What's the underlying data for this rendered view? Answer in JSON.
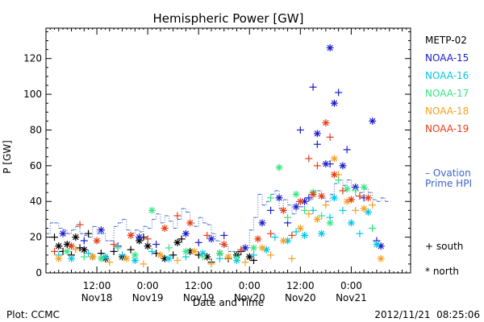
{
  "chart_data": {
    "type": "scatter",
    "title": "Hemispheric Power [GW]",
    "xlabel": "Date and Time",
    "ylabel": "P [GW]",
    "xlim": [
      0,
      86
    ],
    "ylim": [
      0,
      137
    ],
    "yticks": [
      0,
      20,
      40,
      60,
      80,
      100,
      120
    ],
    "xticks": [
      {
        "x": 12,
        "time": "12:00",
        "date": "Nov18"
      },
      {
        "x": 24,
        "time": "0:00",
        "date": "Nov19"
      },
      {
        "x": 36,
        "time": "12:00",
        "date": "Nov19"
      },
      {
        "x": 48,
        "time": "0:00",
        "date": "Nov20"
      },
      {
        "x": 60,
        "time": "12:00",
        "date": "Nov20"
      },
      {
        "x": 72,
        "time": "0:00",
        "date": "Nov21"
      }
    ],
    "grid": false,
    "legend_position": "right",
    "marker_legend": [
      {
        "symbol": "+",
        "label": "south"
      },
      {
        "symbol": "*",
        "label": "north"
      }
    ],
    "series": [
      {
        "name": "METP-02",
        "color": "#000000",
        "points": [
          [
            2,
            20,
            "+"
          ],
          [
            3,
            15,
            "*"
          ],
          [
            4,
            12,
            "+"
          ],
          [
            5,
            16,
            "*"
          ],
          [
            6,
            10,
            "+"
          ],
          [
            7,
            20,
            "*"
          ],
          [
            8,
            14,
            "+"
          ],
          [
            9,
            13,
            "*"
          ],
          [
            10,
            22,
            "+"
          ],
          [
            11,
            9,
            "*"
          ],
          [
            13,
            11,
            "+"
          ],
          [
            14,
            8,
            "*"
          ],
          [
            16,
            12,
            "+"
          ],
          [
            18,
            9,
            "*"
          ],
          [
            20,
            13,
            "+"
          ],
          [
            22,
            18,
            "*"
          ],
          [
            23,
            20,
            "+"
          ],
          [
            24,
            15,
            "*"
          ],
          [
            26,
            11,
            "+"
          ],
          [
            28,
            8,
            "*"
          ],
          [
            30,
            10,
            "+"
          ],
          [
            31,
            17,
            "*"
          ],
          [
            32,
            19,
            "+"
          ],
          [
            34,
            12,
            "*"
          ],
          [
            36,
            10,
            "+"
          ],
          [
            38,
            9,
            "*"
          ],
          [
            39,
            6,
            "+"
          ],
          [
            41,
            11,
            "*"
          ],
          [
            43,
            8,
            "+"
          ],
          [
            45,
            10,
            "*"
          ],
          [
            46,
            12,
            "+"
          ],
          [
            48,
            9,
            "*"
          ],
          [
            49,
            7,
            "+"
          ]
        ]
      },
      {
        "name": "NOAA-15",
        "color": "#1a1acc",
        "points": [
          [
            4,
            22,
            "*"
          ],
          [
            9,
            18,
            "+"
          ],
          [
            13,
            24,
            "*"
          ],
          [
            17,
            15,
            "+"
          ],
          [
            22,
            20,
            "*"
          ],
          [
            26,
            16,
            "+"
          ],
          [
            33,
            22,
            "*"
          ],
          [
            36,
            17,
            "+"
          ],
          [
            39,
            19,
            "*"
          ],
          [
            42,
            21,
            "+"
          ],
          [
            47,
            14,
            "*"
          ],
          [
            51,
            28,
            "*"
          ],
          [
            53,
            35,
            "+"
          ],
          [
            55,
            42,
            "*"
          ],
          [
            57,
            28,
            "+"
          ],
          [
            59,
            37,
            "*"
          ],
          [
            60,
            80,
            "+"
          ],
          [
            61,
            40,
            "*"
          ],
          [
            62,
            42,
            "+"
          ],
          [
            63,
            104,
            "+"
          ],
          [
            64,
            78,
            "*"
          ],
          [
            64,
            72,
            "+"
          ],
          [
            66,
            61,
            "*"
          ],
          [
            67,
            61,
            "+"
          ],
          [
            67,
            126,
            "*"
          ],
          [
            68,
            95,
            "*"
          ],
          [
            69,
            101,
            "+"
          ],
          [
            70,
            60,
            "*"
          ],
          [
            71,
            69,
            "+"
          ],
          [
            73,
            48,
            "*"
          ],
          [
            75,
            42,
            "+"
          ],
          [
            77,
            85,
            "*"
          ],
          [
            78,
            18,
            "+"
          ],
          [
            79,
            15,
            "*"
          ]
        ]
      },
      {
        "name": "NOAA-16",
        "color": "#00c8e6",
        "points": [
          [
            3,
            10,
            "+"
          ],
          [
            6,
            8,
            "*"
          ],
          [
            10,
            11,
            "+"
          ],
          [
            14,
            9,
            "*"
          ],
          [
            18,
            10,
            "+"
          ],
          [
            21,
            7,
            "*"
          ],
          [
            25,
            12,
            "+"
          ],
          [
            29,
            8,
            "*"
          ],
          [
            33,
            9,
            "+"
          ],
          [
            37,
            11,
            "*"
          ],
          [
            41,
            8,
            "+"
          ],
          [
            45,
            7,
            "*"
          ],
          [
            49,
            10,
            "+"
          ],
          [
            52,
            13,
            "*"
          ],
          [
            54,
            20,
            "+"
          ],
          [
            57,
            18,
            "*"
          ],
          [
            59,
            23,
            "+"
          ],
          [
            61,
            21,
            "*"
          ],
          [
            63,
            35,
            "+"
          ],
          [
            65,
            22,
            "*"
          ],
          [
            67,
            31,
            "+"
          ],
          [
            68,
            42,
            "*"
          ],
          [
            70,
            35,
            "+"
          ],
          [
            72,
            28,
            "*"
          ],
          [
            74,
            22,
            "+"
          ],
          [
            76,
            34,
            "*"
          ],
          [
            77,
            25,
            "+"
          ],
          [
            78,
            16,
            "*"
          ]
        ]
      },
      {
        "name": "NOAA-17",
        "color": "#33e680",
        "points": [
          [
            5,
            12,
            "*"
          ],
          [
            9,
            9,
            "+"
          ],
          [
            13,
            8,
            "*"
          ],
          [
            17,
            14,
            "+"
          ],
          [
            21,
            10,
            "*"
          ],
          [
            25,
            35,
            "*"
          ],
          [
            29,
            14,
            "+"
          ],
          [
            33,
            12,
            "*"
          ],
          [
            37,
            9,
            "+"
          ],
          [
            41,
            11,
            "*"
          ],
          [
            45,
            9,
            "+"
          ],
          [
            49,
            14,
            "*"
          ],
          [
            53,
            42,
            "+"
          ],
          [
            55,
            59,
            "*"
          ],
          [
            57,
            31,
            "+"
          ],
          [
            59,
            44,
            "*"
          ],
          [
            61,
            35,
            "+"
          ],
          [
            63,
            45,
            "*"
          ],
          [
            65,
            32,
            "+"
          ],
          [
            67,
            28,
            "*"
          ],
          [
            69,
            52,
            "+"
          ],
          [
            71,
            47,
            "*"
          ],
          [
            73,
            46,
            "+"
          ],
          [
            75,
            48,
            "*"
          ],
          [
            77,
            25,
            "+"
          ]
        ]
      },
      {
        "name": "NOAA-18",
        "color": "#f5a020",
        "points": [
          [
            3,
            8,
            "*"
          ],
          [
            7,
            13,
            "+"
          ],
          [
            11,
            9,
            "*"
          ],
          [
            15,
            6,
            "+"
          ],
          [
            19,
            8,
            "*"
          ],
          [
            23,
            5,
            "+"
          ],
          [
            27,
            10,
            "*"
          ],
          [
            31,
            7,
            "+"
          ],
          [
            35,
            12,
            "*"
          ],
          [
            39,
            5,
            "+"
          ],
          [
            43,
            9,
            "*"
          ],
          [
            47,
            6,
            "+"
          ],
          [
            51,
            14,
            "*"
          ],
          [
            53,
            10,
            "+"
          ],
          [
            56,
            18,
            "*"
          ],
          [
            58,
            8,
            "+"
          ],
          [
            60,
            25,
            "*"
          ],
          [
            62,
            33,
            "+"
          ],
          [
            64,
            30,
            "*"
          ],
          [
            66,
            38,
            "+"
          ],
          [
            68,
            64,
            "*"
          ],
          [
            69,
            55,
            "+"
          ],
          [
            71,
            40,
            "*"
          ],
          [
            73,
            35,
            "+"
          ],
          [
            75,
            36,
            "*"
          ],
          [
            77,
            38,
            "+"
          ],
          [
            79,
            8,
            "*"
          ]
        ]
      },
      {
        "name": "NOAA-19",
        "color": "#e63c14",
        "points": [
          [
            2,
            12,
            "+"
          ],
          [
            6,
            15,
            "*"
          ],
          [
            8,
            27,
            "+"
          ],
          [
            12,
            18,
            "*"
          ],
          [
            16,
            16,
            "+"
          ],
          [
            20,
            21,
            "*"
          ],
          [
            24,
            19,
            "+"
          ],
          [
            28,
            25,
            "*"
          ],
          [
            31,
            32,
            "+"
          ],
          [
            34,
            28,
            "*"
          ],
          [
            38,
            21,
            "+"
          ],
          [
            42,
            16,
            "*"
          ],
          [
            46,
            13,
            "+"
          ],
          [
            50,
            19,
            "*"
          ],
          [
            53,
            22,
            "+"
          ],
          [
            56,
            35,
            "*"
          ],
          [
            58,
            21,
            "+"
          ],
          [
            60,
            40,
            "*"
          ],
          [
            62,
            64,
            "+"
          ],
          [
            63,
            44,
            "*"
          ],
          [
            64,
            60,
            "+"
          ],
          [
            65,
            43,
            "*"
          ],
          [
            66,
            84,
            "*"
          ],
          [
            67,
            76,
            "+"
          ],
          [
            68,
            55,
            "*"
          ],
          [
            70,
            46,
            "+"
          ],
          [
            72,
            41,
            "*"
          ],
          [
            74,
            43,
            "+"
          ],
          [
            76,
            42,
            "*"
          ]
        ]
      }
    ],
    "reference_series": {
      "name": "Ovation Prime HPI",
      "label_lines": [
        "– Ovation",
        "Prime HPI"
      ],
      "color": "#3c64c8",
      "points": [
        [
          0,
          22
        ],
        [
          1,
          28
        ],
        [
          2,
          28
        ],
        [
          3,
          25
        ],
        [
          4,
          24
        ],
        [
          5,
          22
        ],
        [
          6,
          24
        ],
        [
          7,
          26
        ],
        [
          8,
          22
        ],
        [
          9,
          21
        ],
        [
          10,
          20
        ],
        [
          11,
          26
        ],
        [
          12,
          22
        ],
        [
          13,
          22
        ],
        [
          14,
          18
        ],
        [
          15,
          18
        ],
        [
          16,
          26
        ],
        [
          17,
          28
        ],
        [
          18,
          30
        ],
        [
          19,
          24
        ],
        [
          20,
          22
        ],
        [
          21,
          24
        ],
        [
          22,
          23
        ],
        [
          23,
          26
        ],
        [
          24,
          25
        ],
        [
          25,
          30
        ],
        [
          26,
          33
        ],
        [
          27,
          28
        ],
        [
          28,
          32
        ],
        [
          29,
          29
        ],
        [
          30,
          25
        ],
        [
          31,
          30
        ],
        [
          32,
          36
        ],
        [
          33,
          34
        ],
        [
          34,
          28
        ],
        [
          35,
          26
        ],
        [
          36,
          31
        ],
        [
          37,
          28
        ],
        [
          38,
          27
        ],
        [
          39,
          22
        ],
        [
          40,
          18
        ],
        [
          41,
          16
        ],
        [
          42,
          15
        ],
        [
          43,
          12
        ],
        [
          44,
          12
        ],
        [
          45,
          10
        ],
        [
          46,
          12
        ],
        [
          47,
          14
        ],
        [
          48,
          24
        ],
        [
          49,
          31
        ],
        [
          50,
          44
        ],
        [
          51,
          38
        ],
        [
          52,
          40
        ],
        [
          53,
          44
        ],
        [
          54,
          46
        ],
        [
          55,
          36
        ],
        [
          56,
          41
        ],
        [
          57,
          38
        ],
        [
          58,
          33
        ],
        [
          59,
          40
        ],
        [
          60,
          37
        ],
        [
          61,
          42
        ],
        [
          62,
          41
        ],
        [
          63,
          46
        ],
        [
          64,
          46
        ],
        [
          65,
          42
        ],
        [
          66,
          40
        ],
        [
          67,
          44
        ],
        [
          68,
          50
        ],
        [
          69,
          52
        ],
        [
          70,
          49
        ],
        [
          71,
          52
        ],
        [
          72,
          48
        ],
        [
          73,
          43
        ],
        [
          74,
          45
        ],
        [
          75,
          47
        ],
        [
          76,
          45
        ],
        [
          77,
          41
        ],
        [
          78,
          40
        ],
        [
          79,
          42
        ],
        [
          80,
          40
        ]
      ]
    }
  },
  "footer": {
    "left": "Plot: CCMC",
    "right": "2012/11/21  08:25:06"
  }
}
